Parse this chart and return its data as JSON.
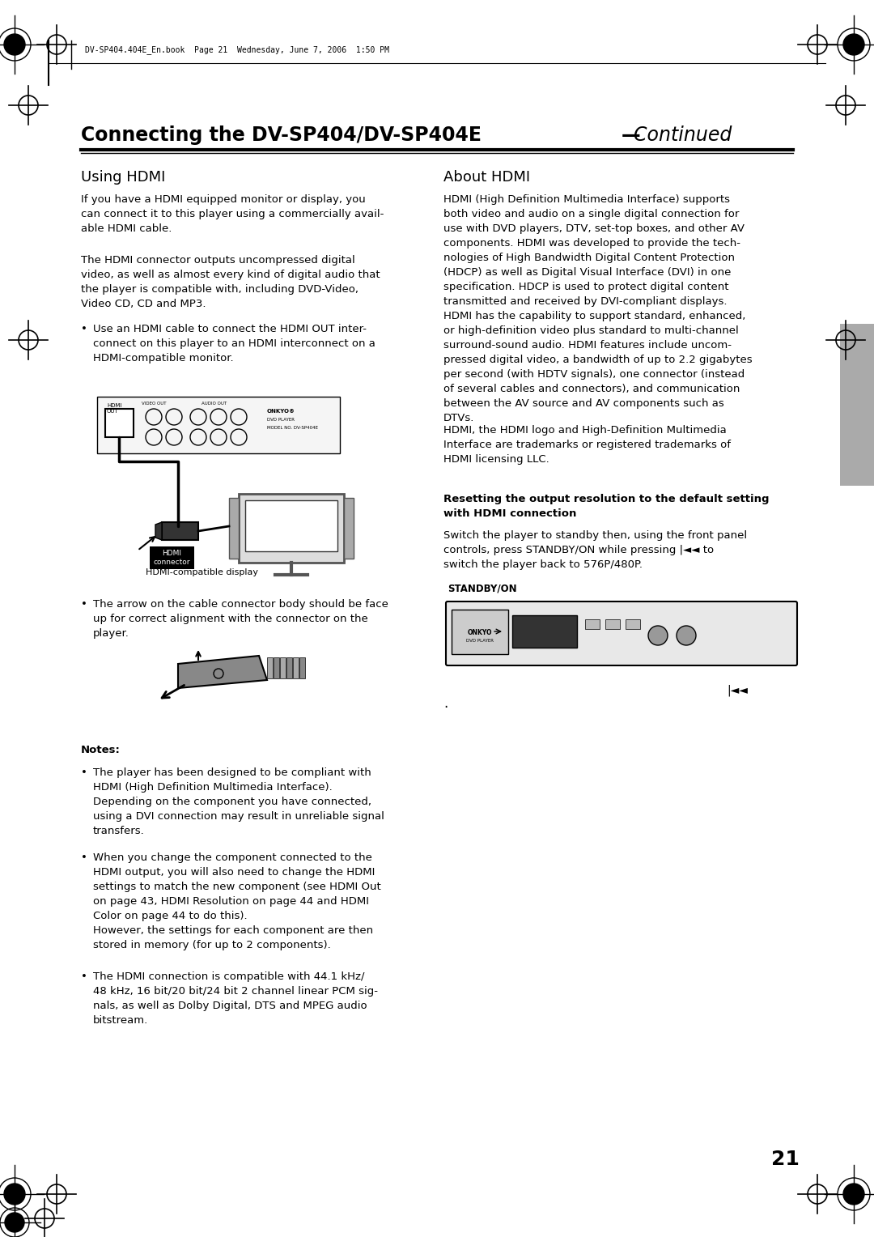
{
  "page_bg": "#ffffff",
  "header_text": "DV-SP404.404E_En.book  Page 21  Wednesday, June 7, 2006  1:50 PM",
  "title": "Connecting the DV-SP404/DV-SP404E",
  "title_italic": "Continued",
  "section1_title": "Using HDMI",
  "section1_para1": "If you have a HDMI equipped monitor or display, you\ncan connect it to this player using a commercially avail-\nable HDMI cable.",
  "section1_para2": "The HDMI connector outputs uncompressed digital\nvideo, as well as almost every kind of digital audio that\nthe player is compatible with, including DVD-Video,\nVideo CD, CD and MP3.",
  "section1_bullet1": "Use an HDMI cable to connect the HDMI OUT inter-\nconnect on this player to an HDMI interconnect on a\nHDMI-compatible monitor.",
  "hdmi_display_label": "HDMI-compatible display",
  "hdmi_connector_label": "HDMI\nconnector",
  "section1_bullet2": "The arrow on the cable connector body should be face\nup for correct alignment with the connector on the\nplayer.",
  "notes_title": "Notes:",
  "note1": "The player has been designed to be compliant with\nHDMI (High Definition Multimedia Interface).\nDepending on the component you have connected,\nusing a DVI connection may result in unreliable signal\ntransfers.",
  "note2": "When you change the component connected to the\nHDMI output, you will also need to change the HDMI\nsettings to match the new component (see HDMI Out\non page 43, HDMI Resolution on page 44 and HDMI\nColor on page 44 to do this).\nHowever, the settings for each component are then\nstored in memory (for up to 2 components).",
  "note3": "The HDMI connection is compatible with 44.1 kHz/\n48 kHz, 16 bit/20 bit/24 bit 2 channel linear PCM sig-\nnals, as well as Dolby Digital, DTS and MPEG audio\nbitstream.",
  "section2_title": "About HDMI",
  "section2_para1": "HDMI (High Definition Multimedia Interface) supports\nboth video and audio on a single digital connection for\nuse with DVD players, DTV, set-top boxes, and other AV\ncomponents. HDMI was developed to provide the tech-\nnologies of High Bandwidth Digital Content Protection\n(HDCP) as well as Digital Visual Interface (DVI) in one\nspecification. HDCP is used to protect digital content\ntransmitted and received by DVI-compliant displays.\nHDMI has the capability to support standard, enhanced,\nor high-definition video plus standard to multi-channel\nsurround-sound audio. HDMI features include uncom-\npressed digital video, a bandwidth of up to 2.2 gigabytes\nper second (with HDTV signals), one connector (instead\nof several cables and connectors), and communication\nbetween the AV source and AV components such as\nDTVs.",
  "section2_para2": "HDMI, the HDMI logo and High-Definition Multimedia\nInterface are trademarks or registered trademarks of\nHDMI licensing LLC.",
  "section2_para3_title": "Resetting the output resolution to the default setting\nwith HDMI connection",
  "section2_para3": "Switch the player to standby then, using the front panel\ncontrols, press STANDBY/ON while pressing |<< to\nswitch the player back to 576P/480P.",
  "standby_label": "STANDBY/ON",
  "page_number": "21",
  "accent_color": "#333333",
  "text_color": "#000000",
  "light_gray": "#999999",
  "dark_gray": "#555555"
}
